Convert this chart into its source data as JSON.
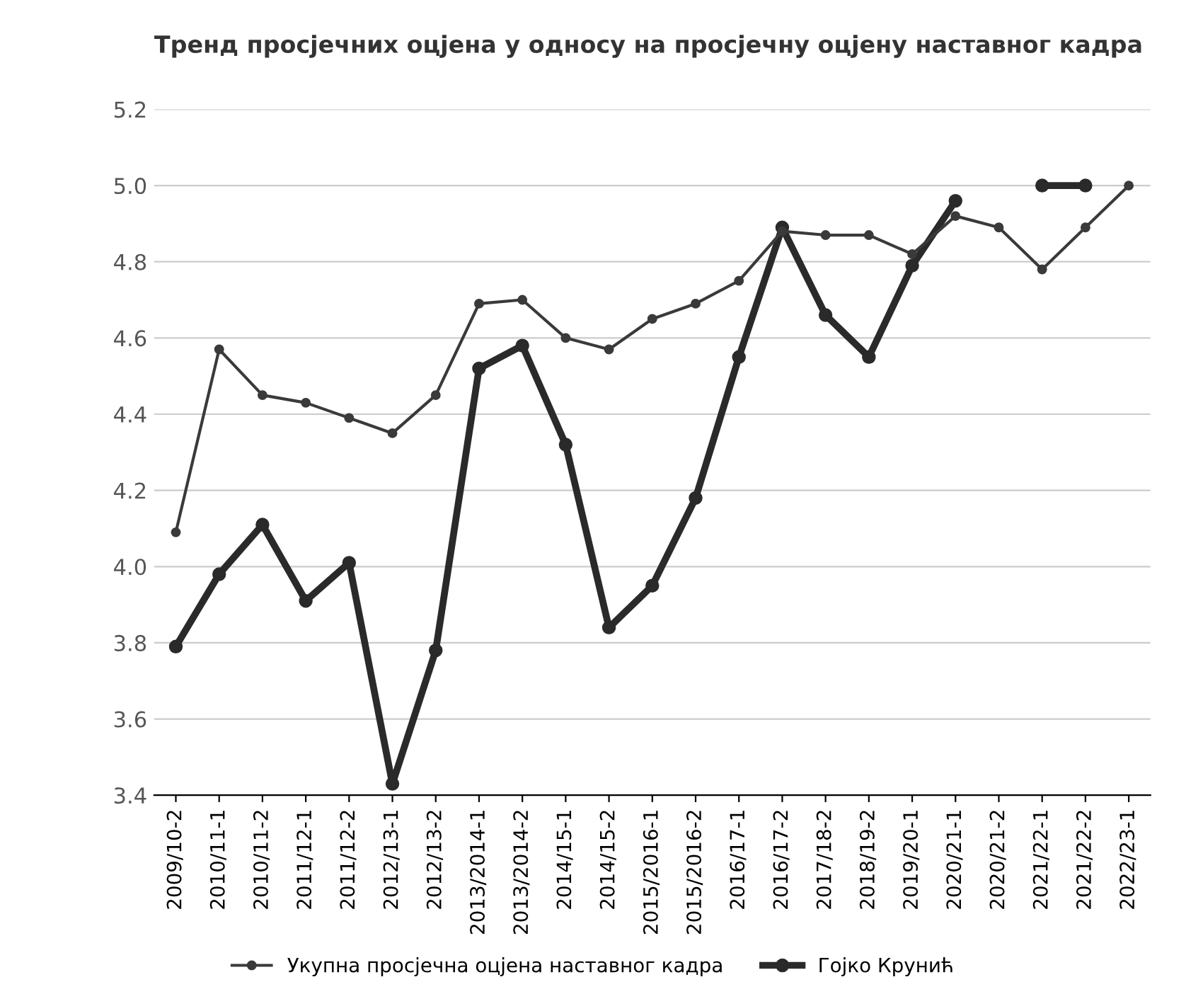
{
  "chart_data": {
    "type": "line",
    "title": "Тренд просјечних оцјена у односу на просјечну оцјену наставног кадра",
    "categories": [
      "2009/10-2",
      "2010/11-1",
      "2010/11-2",
      "2011/12-1",
      "2011/12-2",
      "2012/13-1",
      "2012/13-2",
      "2013/2014-1",
      "2013/2014-2",
      "2014/15-1",
      "2014/15-2",
      "2015/2016-1",
      "2015/2016-2",
      "2016/17-1",
      "2016/17-2",
      "2017/18-2",
      "2018/19-2",
      "2019/20-1",
      "2020/21-1",
      "2020/21-2",
      "2021/22-1",
      "2021/22-2",
      "2022/23-1"
    ],
    "series": [
      {
        "name": "Укупна просјечна оцјена наставног кадра",
        "color": "#3a3a3a",
        "values": [
          4.09,
          4.57,
          4.45,
          4.43,
          4.39,
          4.35,
          4.45,
          4.69,
          4.7,
          4.6,
          4.57,
          4.65,
          4.69,
          4.75,
          4.88,
          4.87,
          4.87,
          4.82,
          4.92,
          4.89,
          4.78,
          4.89,
          5.0
        ]
      },
      {
        "name": "Гојко Крунић",
        "color": "#2a2a2a",
        "values": [
          3.79,
          3.98,
          4.11,
          3.91,
          4.01,
          3.43,
          3.78,
          4.52,
          4.58,
          4.32,
          3.84,
          3.95,
          4.18,
          4.55,
          4.89,
          4.66,
          4.55,
          4.79,
          4.96,
          null,
          5.0,
          5.0,
          null
        ]
      }
    ],
    "ylim": [
      3.4,
      5.2
    ],
    "yticks": [
      3.4,
      3.6,
      3.8,
      {
        "value": 4,
        "label": "4.0"
      },
      4.2,
      4.4,
      4.6,
      4.8,
      {
        "value": 5,
        "label": "5.0"
      },
      5.2
    ],
    "grid": "y",
    "legend": "bottom",
    "marker": "circle",
    "line_style": "solid"
  }
}
